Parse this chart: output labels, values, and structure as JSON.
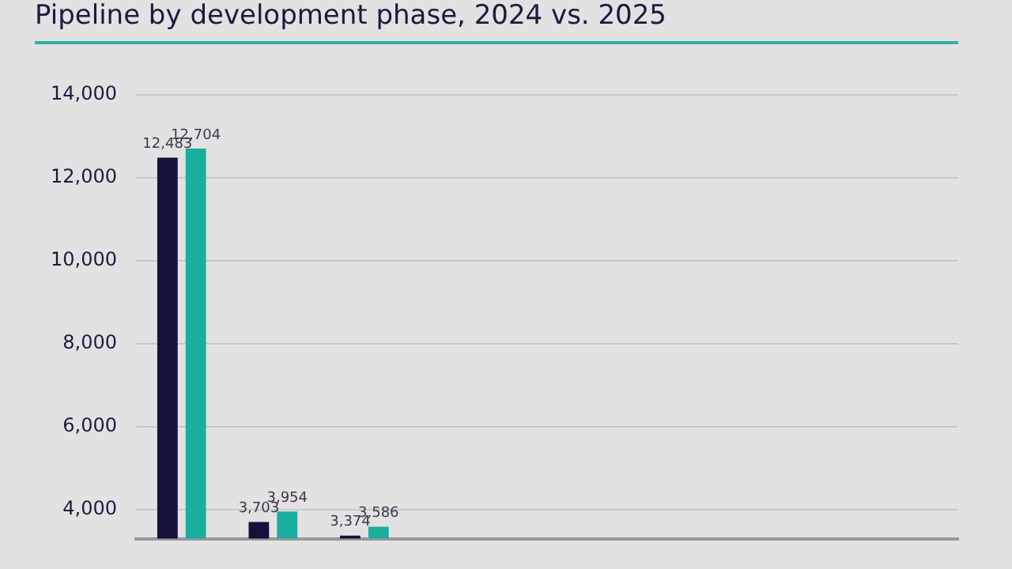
{
  "chart_data": {
    "type": "bar",
    "title": "Pipeline by development phase, 2024 vs. 2025",
    "categories": [
      null,
      null,
      null,
      null,
      null,
      null,
      null,
      null,
      null
    ],
    "series": [
      {
        "color": "#14123a",
        "values": [
          12483,
          3703,
          3374,
          null,
          null,
          null,
          null,
          null,
          null
        ],
        "value_labels": [
          "12,483",
          "3,703",
          "3,374",
          null,
          null,
          null,
          null,
          null,
          null
        ]
      },
      {
        "color": "#1aae9f",
        "values": [
          12704,
          3954,
          3586,
          null,
          null,
          null,
          null,
          null,
          null
        ],
        "value_labels": [
          "12,704",
          "3,954",
          "3,586",
          null,
          null,
          null,
          null,
          null,
          null
        ]
      }
    ],
    "ylim": [
      3300,
      14000
    ],
    "yticks": [
      {
        "value": 4000,
        "label": "4,000"
      },
      {
        "value": 6000,
        "label": "6,000"
      },
      {
        "value": 8000,
        "label": "8,000"
      },
      {
        "value": 10000,
        "label": "10,000"
      },
      {
        "value": 12000,
        "label": "12,000"
      },
      {
        "value": 14000,
        "label": "14,000"
      }
    ],
    "grid": "y",
    "legend": false,
    "tick_labels": "y"
  }
}
